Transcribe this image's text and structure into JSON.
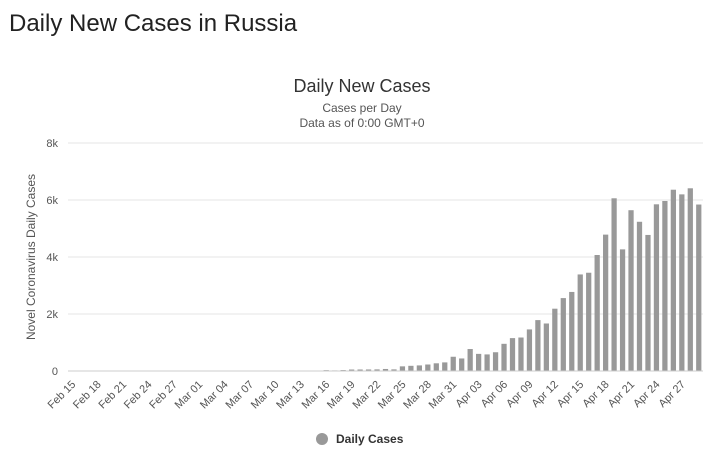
{
  "page": {
    "heading": "Daily New Cases in Russia"
  },
  "chart_data": {
    "type": "bar",
    "title": "Daily New Cases",
    "subtitle": "Cases per Day",
    "subtitle2": "Data as of 0:00 GMT+0",
    "xlabel": "",
    "ylabel": "Novel Coronavirus Daily Cases",
    "ylim": [
      0,
      8000
    ],
    "yticks": [
      0,
      2000,
      4000,
      6000,
      8000
    ],
    "ytick_labels": [
      "0",
      "2k",
      "4k",
      "6k",
      "8k"
    ],
    "grid": true,
    "legend": "bottom-center",
    "bar_color": "#999999",
    "categories": [
      "Feb 15",
      "Feb 16",
      "Feb 17",
      "Feb 18",
      "Feb 19",
      "Feb 20",
      "Feb 21",
      "Feb 22",
      "Feb 23",
      "Feb 24",
      "Feb 25",
      "Feb 26",
      "Feb 27",
      "Feb 28",
      "Feb 29",
      "Mar 01",
      "Mar 02",
      "Mar 03",
      "Mar 04",
      "Mar 05",
      "Mar 06",
      "Mar 07",
      "Mar 08",
      "Mar 09",
      "Mar 10",
      "Mar 11",
      "Mar 12",
      "Mar 13",
      "Mar 14",
      "Mar 15",
      "Mar 16",
      "Mar 17",
      "Mar 18",
      "Mar 19",
      "Mar 20",
      "Mar 21",
      "Mar 22",
      "Mar 23",
      "Mar 24",
      "Mar 25",
      "Mar 26",
      "Mar 27",
      "Mar 28",
      "Mar 29",
      "Mar 30",
      "Mar 31",
      "Apr 01",
      "Apr 02",
      "Apr 03",
      "Apr 04",
      "Apr 05",
      "Apr 06",
      "Apr 07",
      "Apr 08",
      "Apr 09",
      "Apr 10",
      "Apr 11",
      "Apr 12",
      "Apr 13",
      "Apr 14",
      "Apr 15",
      "Apr 16",
      "Apr 17",
      "Apr 18",
      "Apr 19",
      "Apr 20",
      "Apr 21",
      "Apr 22",
      "Apr 23",
      "Apr 24",
      "Apr 25",
      "Apr 26",
      "Apr 27",
      "Apr 28",
      "Apr 29"
    ],
    "xtick_labels": [
      "Feb 15",
      "Feb 18",
      "Feb 21",
      "Feb 24",
      "Feb 27",
      "Mar 01",
      "Mar 04",
      "Mar 07",
      "Mar 10",
      "Mar 13",
      "Mar 16",
      "Mar 19",
      "Mar 22",
      "Mar 25",
      "Mar 28",
      "Mar 31",
      "Apr 03",
      "Apr 06",
      "Apr 09",
      "Apr 12",
      "Apr 15",
      "Apr 18",
      "Apr 21",
      "Apr 24",
      "Apr 27"
    ],
    "series": [
      {
        "name": "Daily Cases",
        "values": [
          0,
          0,
          0,
          0,
          0,
          0,
          0,
          0,
          0,
          0,
          0,
          0,
          0,
          0,
          0,
          0,
          1,
          0,
          0,
          1,
          0,
          6,
          0,
          3,
          3,
          8,
          6,
          6,
          14,
          4,
          30,
          21,
          33,
          52,
          53,
          54,
          57,
          71,
          57,
          163,
          182,
          196,
          228,
          270,
          302,
          500,
          440,
          771,
          601,
          582,
          658,
          954,
          1154,
          1175,
          1459,
          1786,
          1667,
          2186,
          2558,
          2774,
          3388,
          3448,
          4070,
          4785,
          6060,
          4268,
          5642,
          5236,
          4774,
          5849,
          5966,
          6361,
          6198,
          6411,
          5841
        ]
      }
    ]
  }
}
